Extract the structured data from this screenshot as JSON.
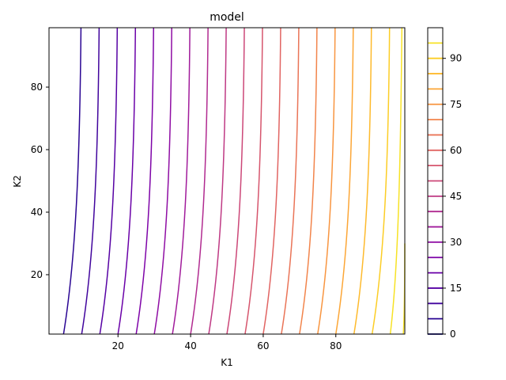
{
  "chart_data": {
    "type": "contour",
    "title": "model",
    "xlabel": "K1",
    "ylabel": "K2",
    "xlim": [
      1,
      99
    ],
    "ylim": [
      1,
      99
    ],
    "xticks": [
      20,
      40,
      60,
      80
    ],
    "yticks": [
      20,
      40,
      60,
      80
    ],
    "grid": false,
    "colormap": "plasma",
    "colorbar": {
      "ticks": [
        0,
        15,
        30,
        45,
        60,
        75,
        90
      ],
      "range": [
        0,
        100
      ]
    },
    "levels": [
      0,
      5,
      10,
      15,
      20,
      25,
      30,
      35,
      40,
      45,
      50,
      55,
      60,
      65,
      70,
      75,
      80,
      85,
      90,
      95
    ],
    "level_colors": [
      "#0d0887",
      "#2a0593",
      "#41049d",
      "#5601a4",
      "#6a00a8",
      "#7e03a8",
      "#8f0da4",
      "#a11b9b",
      "#b12a90",
      "#bf3984",
      "#cc4778",
      "#d6556d",
      "#e16462",
      "#ea7457",
      "#f2844b",
      "#f89540",
      "#fca636",
      "#feba2c",
      "#fccd25",
      "#f7e225"
    ],
    "contours": [
      {
        "level": 5,
        "x_at_bottom": 5,
        "x_at_top": 9.8
      },
      {
        "level": 10,
        "x_at_bottom": 10,
        "x_at_top": 14.8
      },
      {
        "level": 15,
        "x_at_bottom": 15,
        "x_at_top": 19.8
      },
      {
        "level": 20,
        "x_at_bottom": 20,
        "x_at_top": 24.8
      },
      {
        "level": 25,
        "x_at_bottom": 25,
        "x_at_top": 29.8
      },
      {
        "level": 30,
        "x_at_bottom": 30,
        "x_at_top": 34.8
      },
      {
        "level": 35,
        "x_at_bottom": 35,
        "x_at_top": 39.8
      },
      {
        "level": 40,
        "x_at_bottom": 40,
        "x_at_top": 44.8
      },
      {
        "level": 45,
        "x_at_bottom": 45,
        "x_at_top": 49.8
      },
      {
        "level": 50,
        "x_at_bottom": 50,
        "x_at_top": 54.8
      },
      {
        "level": 55,
        "x_at_bottom": 55,
        "x_at_top": 59.8
      },
      {
        "level": 60,
        "x_at_bottom": 60,
        "x_at_top": 64.8
      },
      {
        "level": 65,
        "x_at_bottom": 65,
        "x_at_top": 69.8
      },
      {
        "level": 70,
        "x_at_bottom": 70,
        "x_at_top": 74.8
      },
      {
        "level": 75,
        "x_at_bottom": 75,
        "x_at_top": 79.8
      },
      {
        "level": 80,
        "x_at_bottom": 80,
        "x_at_top": 84.8
      },
      {
        "level": 85,
        "x_at_bottom": 85,
        "x_at_top": 89.8
      },
      {
        "level": 90,
        "x_at_bottom": 90,
        "x_at_top": 94.8
      },
      {
        "level": 95,
        "x_at_bottom": 95,
        "x_at_top": 99
      }
    ]
  }
}
